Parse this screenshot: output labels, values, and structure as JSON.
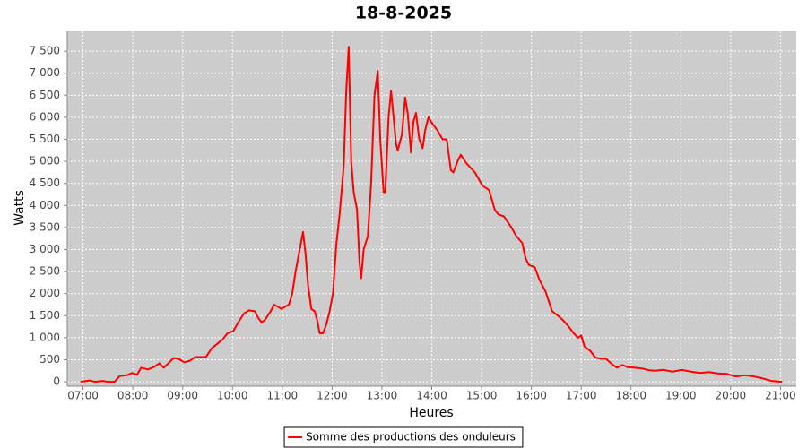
{
  "chart_data": {
    "type": "line",
    "title": "18-8-2025",
    "x_label": "Heures",
    "y_label": "Watts",
    "x": [
      "06:57",
      "07:08",
      "07:14",
      "07:24",
      "07:29",
      "07:38",
      "07:44",
      "07:53",
      "07:59",
      "08:05",
      "08:10",
      "08:18",
      "08:25",
      "08:32",
      "08:37",
      "08:43",
      "08:49",
      "08:56",
      "09:02",
      "09:09",
      "09:15",
      "09:22",
      "09:28",
      "09:35",
      "09:41",
      "09:48",
      "09:54",
      "10:01",
      "10:07",
      "10:14",
      "10:20",
      "10:27",
      "10:31",
      "10:35",
      "10:39",
      "10:46",
      "10:50",
      "10:55",
      "10:59",
      "11:03",
      "11:08",
      "11:12",
      "11:16",
      "11:21",
      "11:25",
      "11:28",
      "11:31",
      "11:35",
      "11:39",
      "11:42",
      "11:45",
      "11:49",
      "11:53",
      "11:57",
      "12:01",
      "12:05",
      "12:09",
      "12:14",
      "12:17",
      "12:20",
      "12:23",
      "12:26",
      "12:30",
      "12:33",
      "12:35",
      "12:38",
      "12:43",
      "12:47",
      "12:51",
      "12:55",
      "12:58",
      "13:02",
      "13:04",
      "13:08",
      "13:11",
      "13:14",
      "13:17",
      "13:19",
      "13:24",
      "13:28",
      "13:31",
      "13:35",
      "13:38",
      "13:41",
      "13:45",
      "13:49",
      "13:52",
      "13:56",
      "14:01",
      "14:07",
      "14:13",
      "14:18",
      "14:23",
      "14:26",
      "14:31",
      "14:35",
      "14:42",
      "14:52",
      "15:01",
      "15:09",
      "15:16",
      "15:20",
      "15:27",
      "15:36",
      "15:42",
      "15:49",
      "15:53",
      "15:57",
      "16:04",
      "16:10",
      "16:17",
      "16:25",
      "16:32",
      "16:38",
      "16:45",
      "16:51",
      "16:56",
      "17:00",
      "17:04",
      "17:11",
      "17:17",
      "17:24",
      "17:30",
      "17:37",
      "17:43",
      "17:50",
      "17:56",
      "18:05",
      "18:14",
      "18:22",
      "18:29",
      "18:39",
      "18:50",
      "19:01",
      "19:12",
      "19:23",
      "19:34",
      "19:44",
      "19:55",
      "20:06",
      "20:17",
      "20:28",
      "20:38",
      "20:49",
      "21:02"
    ],
    "series": [
      {
        "name": "Somme des productions des onduleurs",
        "color": "#ff0000",
        "values": [
          0,
          30,
          0,
          20,
          0,
          0,
          130,
          150,
          200,
          160,
          320,
          280,
          330,
          420,
          320,
          420,
          540,
          510,
          440,
          480,
          560,
          560,
          560,
          760,
          850,
          960,
          1100,
          1150,
          1350,
          1550,
          1620,
          1600,
          1450,
          1350,
          1400,
          1600,
          1750,
          1700,
          1650,
          1700,
          1750,
          2000,
          2500,
          3000,
          3400,
          2900,
          2200,
          1650,
          1600,
          1400,
          1100,
          1100,
          1300,
          1600,
          2000,
          3100,
          3800,
          4900,
          6600,
          7600,
          5000,
          4300,
          3900,
          2700,
          2350,
          3000,
          3300,
          4500,
          6500,
          7050,
          5500,
          4300,
          4300,
          6000,
          6600,
          6000,
          5400,
          5250,
          5600,
          6450,
          6100,
          5200,
          5900,
          6100,
          5500,
          5300,
          5700,
          6000,
          5850,
          5700,
          5500,
          5500,
          4800,
          4750,
          5000,
          5150,
          4950,
          4750,
          4450,
          4350,
          3900,
          3800,
          3750,
          3500,
          3300,
          3150,
          2800,
          2650,
          2600,
          2300,
          2050,
          1600,
          1500,
          1400,
          1250,
          1100,
          1000,
          1050,
          800,
          700,
          550,
          520,
          520,
          400,
          320,
          380,
          330,
          320,
          300,
          260,
          250,
          270,
          230,
          270,
          230,
          200,
          220,
          190,
          180,
          120,
          150,
          120,
          80,
          20,
          0
        ]
      }
    ],
    "xlim": [
      "06:41",
      "21:19"
    ],
    "xticks": [
      "07:00",
      "08:00",
      "09:00",
      "10:00",
      "11:00",
      "12:00",
      "13:00",
      "14:00",
      "15:00",
      "16:00",
      "17:00",
      "18:00",
      "19:00",
      "20:00",
      "21:00"
    ],
    "ylim": [
      -100,
      7950
    ],
    "yticks": [
      0,
      500,
      {
        "value": 1000,
        "label": "1 000"
      },
      {
        "value": 1500,
        "label": "1 500"
      },
      {
        "value": 2000,
        "label": "2 000"
      },
      {
        "value": 2500,
        "label": "2 500"
      },
      {
        "value": 3000,
        "label": "3 000"
      },
      {
        "value": 3500,
        "label": "3 500"
      },
      {
        "value": 4000,
        "label": "4 000"
      },
      {
        "value": 4500,
        "label": "4 500"
      },
      {
        "value": 5000,
        "label": "5 000"
      },
      {
        "value": 5500,
        "label": "5 500"
      },
      {
        "value": 6000,
        "label": "6 000"
      },
      {
        "value": 6500,
        "label": "6 500"
      },
      {
        "value": 7000,
        "label": "7 000"
      },
      {
        "value": 7500,
        "label": "7 500"
      }
    ],
    "grid": true
  }
}
